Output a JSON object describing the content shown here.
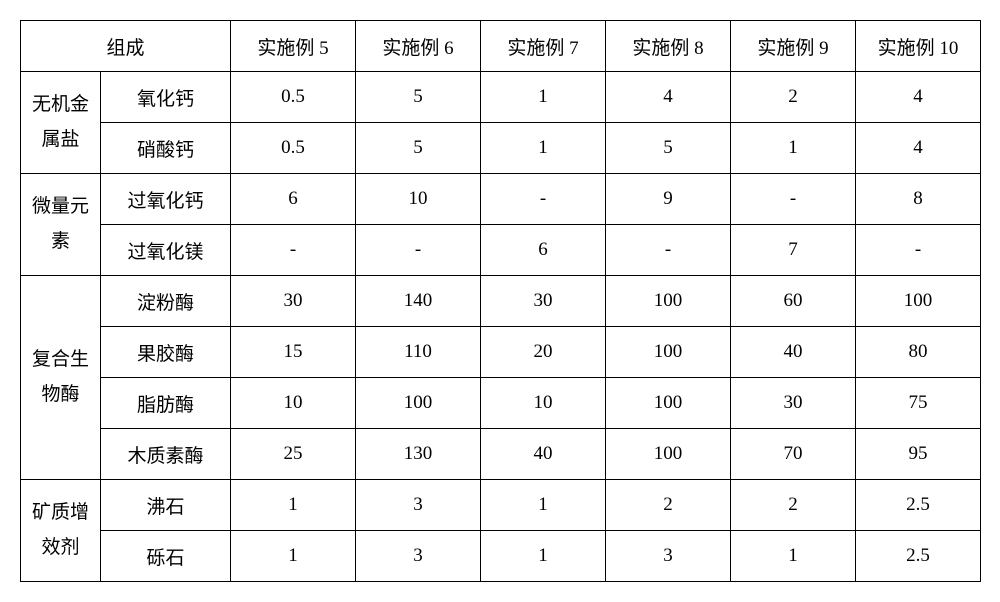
{
  "header": {
    "composition": "组成",
    "cols": [
      "实施例 5",
      "实施例 6",
      "实施例 7",
      "实施例 8",
      "实施例 9",
      "实施例 10"
    ]
  },
  "groups": [
    {
      "name_line1": "无机金",
      "name_line2": "属盐",
      "rows": [
        {
          "label": "氧化钙",
          "vals": [
            "0.5",
            "5",
            "1",
            "4",
            "2",
            "4"
          ]
        },
        {
          "label": "硝酸钙",
          "vals": [
            "0.5",
            "5",
            "1",
            "5",
            "1",
            "4"
          ]
        }
      ]
    },
    {
      "name_line1": "微量元",
      "name_line2": "素",
      "rows": [
        {
          "label": "过氧化钙",
          "vals": [
            "6",
            "10",
            "-",
            "9",
            "-",
            "8"
          ]
        },
        {
          "label": "过氧化镁",
          "vals": [
            "-",
            "-",
            "6",
            "-",
            "7",
            "-"
          ]
        }
      ]
    },
    {
      "name_line1": "复合生",
      "name_line2": "物酶",
      "rows": [
        {
          "label": "淀粉酶",
          "vals": [
            "30",
            "140",
            "30",
            "100",
            "60",
            "100"
          ]
        },
        {
          "label": "果胶酶",
          "vals": [
            "15",
            "110",
            "20",
            "100",
            "40",
            "80"
          ]
        },
        {
          "label": "脂肪酶",
          "vals": [
            "10",
            "100",
            "10",
            "100",
            "30",
            "75"
          ]
        },
        {
          "label": "木质素酶",
          "vals": [
            "25",
            "130",
            "40",
            "100",
            "70",
            "95"
          ]
        }
      ]
    },
    {
      "name_line1": "矿质增",
      "name_line2": "效剂",
      "rows": [
        {
          "label": "沸石",
          "vals": [
            "1",
            "3",
            "1",
            "2",
            "2",
            "2.5"
          ]
        },
        {
          "label": "砾石",
          "vals": [
            "1",
            "3",
            "1",
            "3",
            "1",
            "2.5"
          ]
        }
      ]
    }
  ]
}
